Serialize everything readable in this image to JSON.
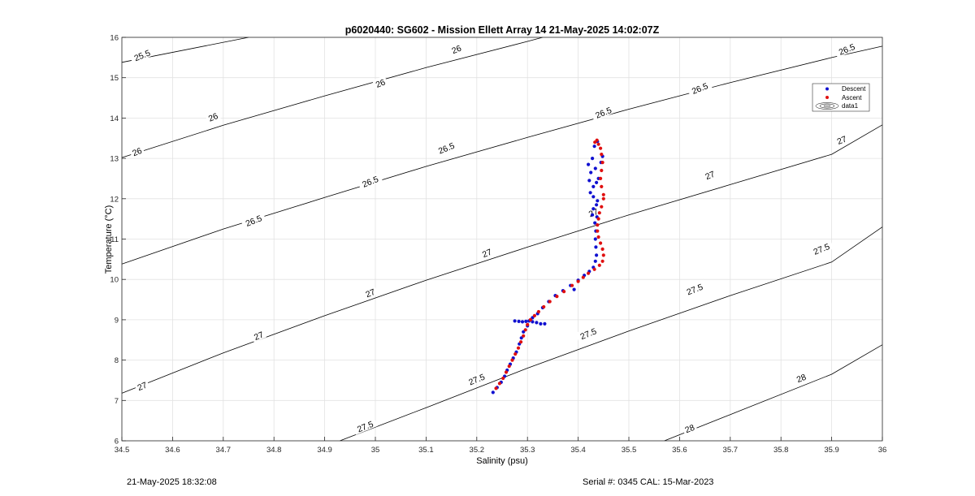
{
  "chart_data": {
    "type": "scatter",
    "title": "p6020440: SG602 - Mission Ellett Array 14 21-May-2025 14:02:07Z",
    "xlabel": "Salinity (psu)",
    "ylabel": "Temperature (°C)",
    "xlim": [
      34.5,
      36
    ],
    "ylim": [
      6,
      16
    ],
    "xticks": [
      "34.5",
      "34.6",
      "34.7",
      "34.8",
      "34.9",
      "35",
      "35.1",
      "35.2",
      "35.3",
      "35.4",
      "35.5",
      "35.6",
      "35.7",
      "35.8",
      "35.9",
      "36"
    ],
    "yticks": [
      "6",
      "7",
      "8",
      "9",
      "10",
      "11",
      "12",
      "13",
      "14",
      "15",
      "16"
    ],
    "grid": true,
    "legend_position": "top-right",
    "legend": [
      "Descent",
      "Ascent",
      "data1"
    ],
    "colors": {
      "descent": "#1010d0",
      "ascent": "#e01010",
      "contour": "#000000",
      "grid": "#e2e2e2"
    },
    "contours": [
      {
        "level": 25.5,
        "label": "25.5",
        "points": [
          [
            34.5,
            15.38
          ],
          [
            34.75,
            16.0
          ]
        ]
      },
      {
        "level": 26,
        "label": "26",
        "points": [
          [
            34.5,
            13.02
          ],
          [
            34.7,
            13.82
          ],
          [
            34.9,
            14.55
          ],
          [
            35.1,
            15.25
          ],
          [
            35.3,
            15.9
          ],
          [
            35.33,
            16.0
          ]
        ]
      },
      {
        "level": 26.5,
        "label": "26.5",
        "points": [
          [
            34.5,
            10.38
          ],
          [
            34.7,
            11.25
          ],
          [
            34.9,
            12.03
          ],
          [
            35.1,
            12.8
          ],
          [
            35.3,
            13.52
          ],
          [
            35.5,
            14.22
          ],
          [
            35.7,
            14.88
          ],
          [
            35.9,
            15.5
          ],
          [
            36.0,
            15.78
          ]
        ]
      },
      {
        "level": 27,
        "label": "27",
        "points": [
          [
            34.5,
            7.18
          ],
          [
            34.7,
            8.18
          ],
          [
            34.9,
            9.1
          ],
          [
            35.1,
            9.98
          ],
          [
            35.3,
            10.8
          ],
          [
            35.5,
            11.6
          ],
          [
            35.7,
            12.35
          ],
          [
            35.9,
            13.1
          ],
          [
            36.0,
            13.83
          ]
        ]
      },
      {
        "level": 27.5,
        "label": "27.5",
        "points": [
          [
            34.93,
            6.0
          ],
          [
            35.1,
            6.82
          ],
          [
            35.3,
            7.8
          ],
          [
            35.5,
            8.72
          ],
          [
            35.7,
            9.6
          ],
          [
            35.9,
            10.43
          ],
          [
            36.0,
            11.3
          ]
        ]
      },
      {
        "level": 28,
        "label": "28",
        "points": [
          [
            35.57,
            6.0
          ],
          [
            35.7,
            6.65
          ],
          [
            35.9,
            7.65
          ],
          [
            36.0,
            8.38
          ]
        ]
      }
    ],
    "contour_labels": [
      {
        "text": "25.5",
        "x": 34.54,
        "y": 15.55
      },
      {
        "text": "26",
        "x": 35.16,
        "y": 15.7
      },
      {
        "text": "26",
        "x": 34.68,
        "y": 14.02
      },
      {
        "text": "26",
        "x": 35.01,
        "y": 14.86
      },
      {
        "text": "26",
        "x": 34.53,
        "y": 13.16
      },
      {
        "text": "26.5",
        "x": 35.93,
        "y": 15.7
      },
      {
        "text": "26.5",
        "x": 35.45,
        "y": 14.13
      },
      {
        "text": "26.5",
        "x": 35.64,
        "y": 14.73
      },
      {
        "text": "26.5",
        "x": 35.14,
        "y": 13.25
      },
      {
        "text": "26.5",
        "x": 34.99,
        "y": 12.42
      },
      {
        "text": "26.5",
        "x": 34.76,
        "y": 11.45
      },
      {
        "text": "27",
        "x": 35.92,
        "y": 13.45
      },
      {
        "text": "27",
        "x": 35.43,
        "y": 11.65
      },
      {
        "text": "27",
        "x": 35.66,
        "y": 12.58
      },
      {
        "text": "27",
        "x": 35.22,
        "y": 10.65
      },
      {
        "text": "27",
        "x": 34.99,
        "y": 9.66
      },
      {
        "text": "27",
        "x": 34.77,
        "y": 8.6
      },
      {
        "text": "27",
        "x": 34.54,
        "y": 7.35
      },
      {
        "text": "27.5",
        "x": 35.88,
        "y": 10.75
      },
      {
        "text": "27.5",
        "x": 35.63,
        "y": 9.75
      },
      {
        "text": "27.5",
        "x": 35.42,
        "y": 8.65
      },
      {
        "text": "27.5",
        "x": 35.2,
        "y": 7.52
      },
      {
        "text": "27.5",
        "x": 34.98,
        "y": 6.35
      },
      {
        "text": "28",
        "x": 35.84,
        "y": 7.55
      },
      {
        "text": "28",
        "x": 35.62,
        "y": 6.3
      }
    ],
    "series": [
      {
        "name": "Descent",
        "type": "scatter",
        "points": [
          [
            35.232,
            7.2
          ],
          [
            35.24,
            7.32
          ],
          [
            35.248,
            7.45
          ],
          [
            35.255,
            7.6
          ],
          [
            35.26,
            7.75
          ],
          [
            35.266,
            7.9
          ],
          [
            35.272,
            8.05
          ],
          [
            35.278,
            8.2
          ],
          [
            35.284,
            8.4
          ],
          [
            35.288,
            8.55
          ],
          [
            35.292,
            8.7
          ],
          [
            35.275,
            8.97
          ],
          [
            35.283,
            8.96
          ],
          [
            35.29,
            8.95
          ],
          [
            35.297,
            8.96
          ],
          [
            35.303,
            8.97
          ],
          [
            35.31,
            8.95
          ],
          [
            35.318,
            8.93
          ],
          [
            35.326,
            8.9
          ],
          [
            35.334,
            8.9
          ],
          [
            35.3,
            8.85
          ],
          [
            35.31,
            9.05
          ],
          [
            35.32,
            9.15
          ],
          [
            35.33,
            9.3
          ],
          [
            35.342,
            9.45
          ],
          [
            35.355,
            9.6
          ],
          [
            35.37,
            9.72
          ],
          [
            35.385,
            9.85
          ],
          [
            35.392,
            9.75
          ],
          [
            35.4,
            9.98
          ],
          [
            35.412,
            10.1
          ],
          [
            35.422,
            10.2
          ],
          [
            35.43,
            10.3
          ],
          [
            35.434,
            10.45
          ],
          [
            35.436,
            10.6
          ],
          [
            35.435,
            10.8
          ],
          [
            35.434,
            11.0
          ],
          [
            35.435,
            11.2
          ],
          [
            35.433,
            11.4
          ],
          [
            35.437,
            11.55
          ],
          [
            35.428,
            11.6
          ],
          [
            35.43,
            11.75
          ],
          [
            35.436,
            11.85
          ],
          [
            35.438,
            11.95
          ],
          [
            35.424,
            12.15
          ],
          [
            35.43,
            12.3
          ],
          [
            35.436,
            12.4
          ],
          [
            35.44,
            12.5
          ],
          [
            35.425,
            12.65
          ],
          [
            35.42,
            12.85
          ],
          [
            35.428,
            13.0
          ],
          [
            35.434,
            12.75
          ],
          [
            35.445,
            12.9
          ],
          [
            35.448,
            13.05
          ],
          [
            35.432,
            13.3
          ],
          [
            35.438,
            13.42
          ],
          [
            35.422,
            12.45
          ],
          [
            35.43,
            12.05
          ]
        ]
      },
      {
        "name": "Ascent",
        "type": "scatter",
        "points": [
          [
            35.238,
            7.3
          ],
          [
            35.245,
            7.42
          ],
          [
            35.252,
            7.55
          ],
          [
            35.258,
            7.7
          ],
          [
            35.264,
            7.85
          ],
          [
            35.27,
            8.0
          ],
          [
            35.276,
            8.15
          ],
          [
            35.282,
            8.3
          ],
          [
            35.287,
            8.45
          ],
          [
            35.292,
            8.6
          ],
          [
            35.296,
            8.75
          ],
          [
            35.3,
            8.88
          ],
          [
            35.306,
            9.0
          ],
          [
            35.314,
            9.1
          ],
          [
            35.322,
            9.2
          ],
          [
            35.332,
            9.32
          ],
          [
            35.344,
            9.45
          ],
          [
            35.358,
            9.58
          ],
          [
            35.372,
            9.7
          ],
          [
            35.388,
            9.85
          ],
          [
            35.4,
            9.95
          ],
          [
            35.41,
            10.05
          ],
          [
            35.42,
            10.15
          ],
          [
            35.432,
            10.25
          ],
          [
            35.442,
            10.35
          ],
          [
            35.448,
            10.45
          ],
          [
            35.45,
            10.6
          ],
          [
            35.448,
            10.75
          ],
          [
            35.444,
            10.9
          ],
          [
            35.44,
            11.05
          ],
          [
            35.438,
            11.2
          ],
          [
            35.438,
            11.35
          ],
          [
            35.44,
            11.5
          ],
          [
            35.442,
            11.65
          ],
          [
            35.446,
            11.8
          ],
          [
            35.45,
            12.0
          ],
          [
            35.45,
            12.1
          ],
          [
            35.446,
            12.3
          ],
          [
            35.444,
            12.5
          ],
          [
            35.446,
            12.7
          ],
          [
            35.448,
            12.9
          ],
          [
            35.446,
            13.1
          ],
          [
            35.444,
            13.25
          ],
          [
            35.44,
            13.35
          ],
          [
            35.437,
            13.45
          ],
          [
            35.433,
            13.4
          ]
        ]
      }
    ]
  },
  "footer": {
    "left": "21-May-2025 18:32:08",
    "right": "Serial #: 0345  CAL: 15-Mar-2023"
  }
}
